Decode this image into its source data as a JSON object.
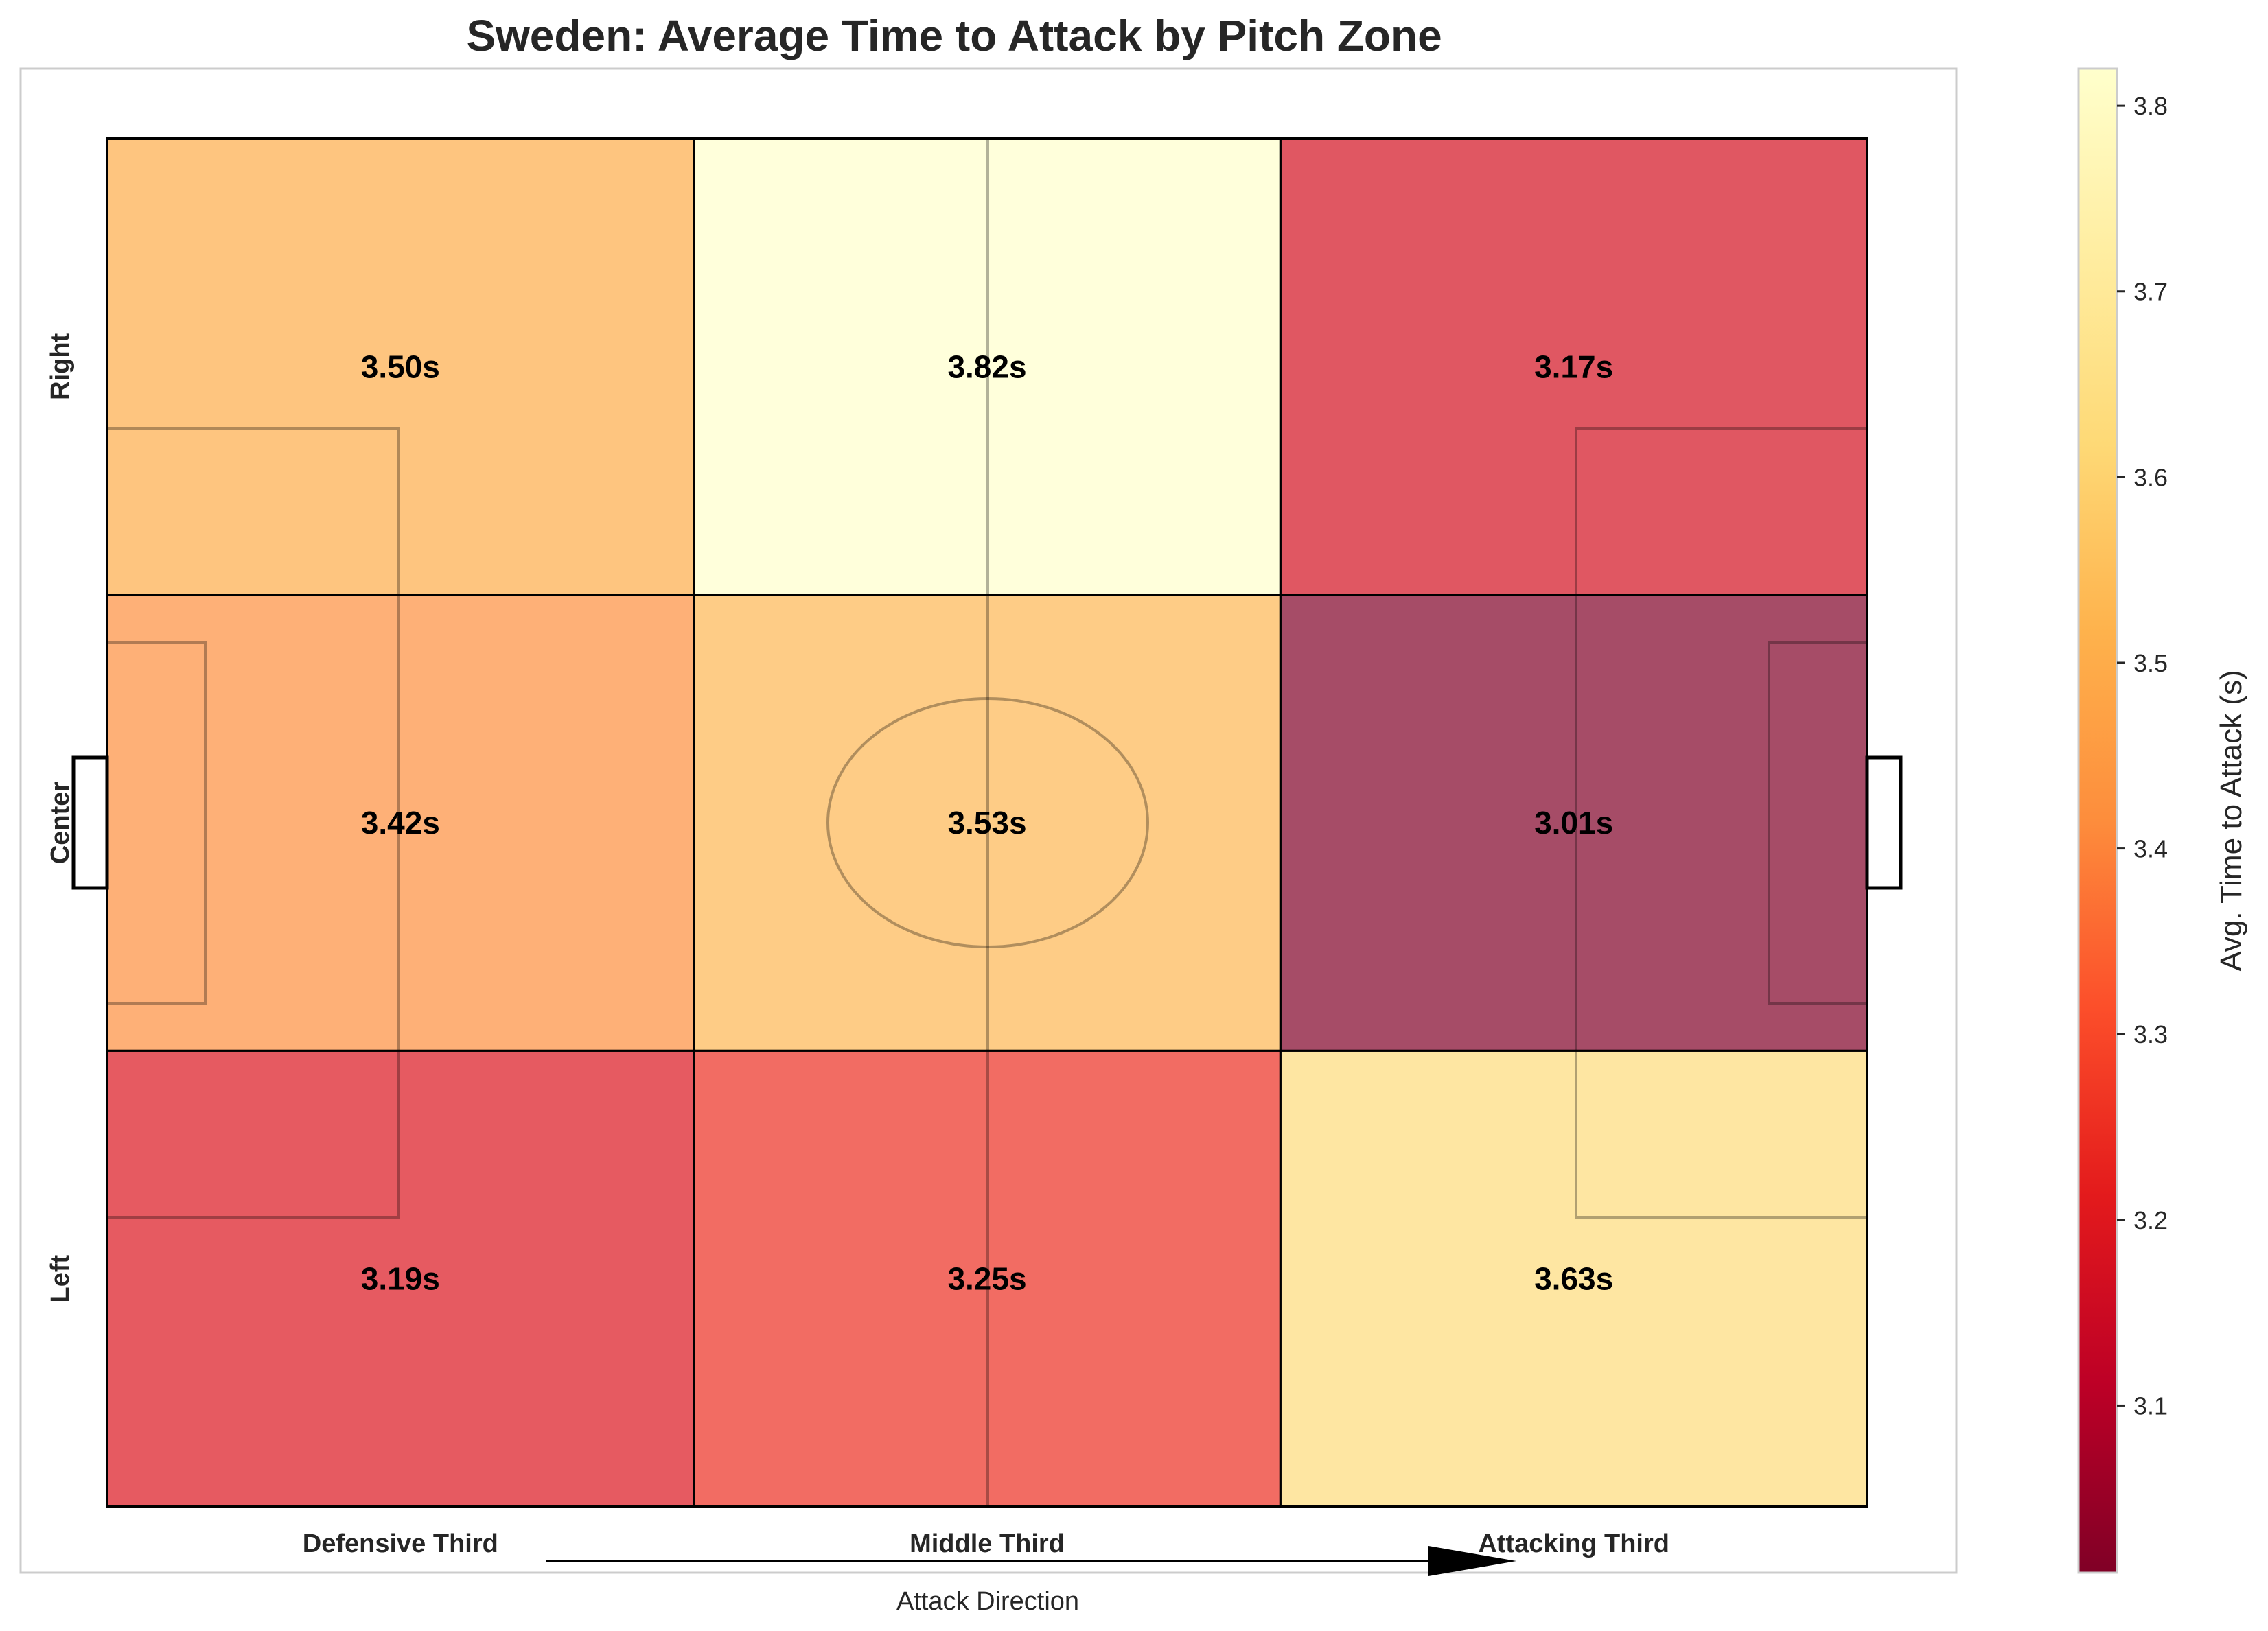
{
  "chart_data": {
    "type": "heatmap",
    "title": "Sweden: Average Time to Attack by Pitch Zone",
    "xlabel": "Attack Direction",
    "x_categories": [
      "Defensive Third",
      "Middle Third",
      "Attacking Third"
    ],
    "y_categories": [
      "Left",
      "Center",
      "Right"
    ],
    "values": [
      [
        3.19,
        3.25,
        3.63
      ],
      [
        3.42,
        3.53,
        3.01
      ],
      [
        3.5,
        3.82,
        3.17
      ]
    ],
    "cell_labels": [
      [
        "3.19s",
        "3.25s",
        "3.63s"
      ],
      [
        "3.42s",
        "3.53s",
        "3.01s"
      ],
      [
        "3.50s",
        "3.82s",
        "3.17s"
      ]
    ],
    "colorbar": {
      "label": "Avg. Time to Attack (s)",
      "range": [
        3.01,
        3.82
      ],
      "ticks": [
        3.1,
        3.2,
        3.3,
        3.4,
        3.5,
        3.6,
        3.7,
        3.8
      ],
      "tick_labels": [
        "3.1",
        "3.2",
        "3.3",
        "3.4",
        "3.5",
        "3.6",
        "3.7",
        "3.8"
      ],
      "colormap": "YlOrRd_r"
    },
    "cell_alpha": 0.7,
    "grid": false
  }
}
